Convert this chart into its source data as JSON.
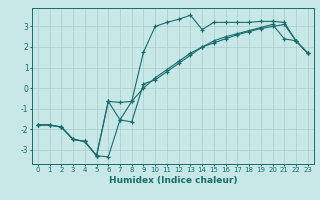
{
  "xlabel": "Humidex (Indice chaleur)",
  "ylabel": "",
  "bg_color": "#c8e8e8",
  "line_color": "#1a6b6b",
  "grid_color": "#a8cccc",
  "xlim": [
    -0.5,
    23.5
  ],
  "ylim": [
    -3.7,
    3.9
  ],
  "line1_x": [
    0,
    1,
    2,
    3,
    4,
    5,
    6,
    7,
    8,
    9,
    10,
    11,
    12,
    13,
    14,
    15,
    16,
    17,
    18,
    19,
    20,
    21,
    22,
    23
  ],
  "line1_y": [
    -1.8,
    -1.8,
    -1.9,
    -2.5,
    -2.6,
    -3.3,
    -3.35,
    -1.55,
    -0.65,
    1.75,
    3.0,
    3.2,
    3.35,
    3.55,
    2.85,
    3.2,
    3.2,
    3.2,
    3.2,
    3.25,
    3.25,
    3.2,
    2.3,
    1.7
  ],
  "line2_x": [
    0,
    1,
    2,
    3,
    4,
    5,
    6,
    7,
    8,
    9,
    10,
    11,
    12,
    13,
    14,
    15,
    16,
    17,
    18,
    19,
    20,
    21,
    22,
    23
  ],
  "line2_y": [
    -1.8,
    -1.8,
    -1.9,
    -2.5,
    -2.6,
    -3.3,
    -0.65,
    -0.7,
    -0.65,
    0.0,
    0.5,
    0.9,
    1.3,
    1.7,
    2.0,
    2.2,
    2.4,
    2.6,
    2.75,
    2.9,
    3.0,
    3.1,
    2.3,
    1.7
  ],
  "line3_x": [
    0,
    1,
    2,
    3,
    4,
    5,
    6,
    7,
    8,
    9,
    10,
    11,
    12,
    13,
    14,
    15,
    16,
    17,
    18,
    19,
    20,
    21,
    22,
    23
  ],
  "line3_y": [
    -1.8,
    -1.8,
    -1.9,
    -2.5,
    -2.6,
    -3.3,
    -0.65,
    -1.55,
    -1.65,
    0.2,
    0.4,
    0.8,
    1.2,
    1.6,
    2.0,
    2.3,
    2.5,
    2.65,
    2.8,
    2.95,
    3.1,
    2.4,
    2.3,
    1.7
  ],
  "xticks": [
    0,
    1,
    2,
    3,
    4,
    5,
    6,
    7,
    8,
    9,
    10,
    11,
    12,
    13,
    14,
    15,
    16,
    17,
    18,
    19,
    20,
    21,
    22,
    23
  ],
  "yticks": [
    -3,
    -2,
    -1,
    0,
    1,
    2,
    3
  ]
}
